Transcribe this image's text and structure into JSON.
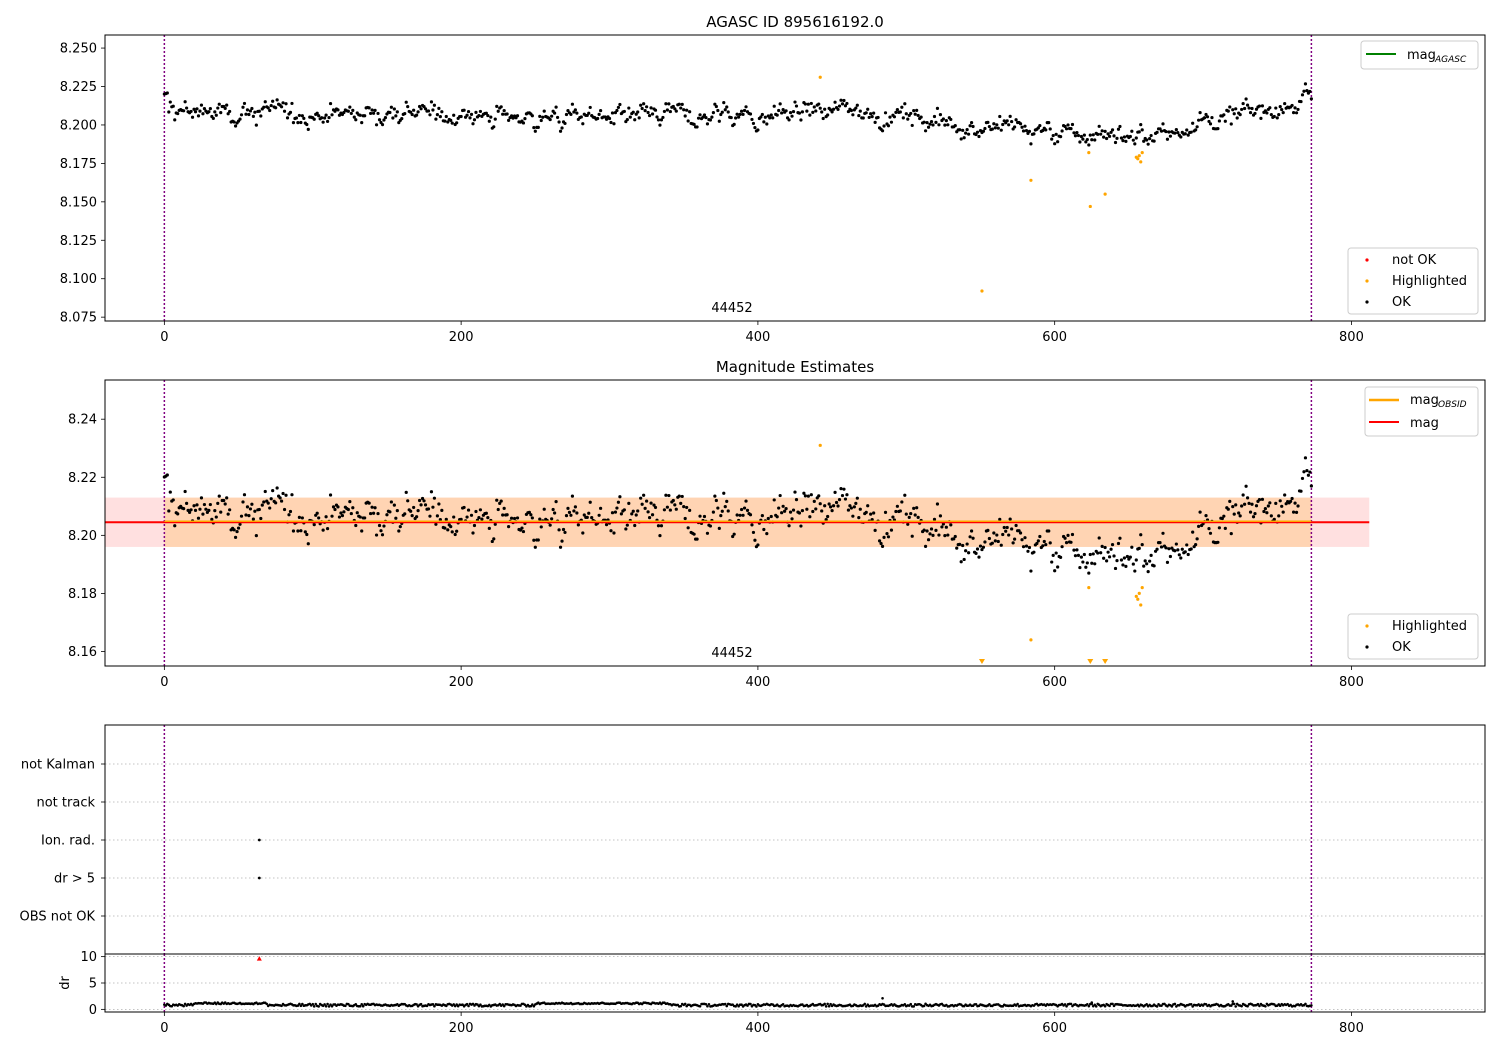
{
  "chart_data": [
    {
      "type": "scatter",
      "title": "AGASC ID 895616192.0",
      "xlabel": "",
      "ylabel": "",
      "xlim": [
        -40,
        890
      ],
      "ylim": [
        8.0725,
        8.2585
      ],
      "x_ticks": [
        "0",
        "200",
        "400",
        "600",
        "800"
      ],
      "y_ticks": [
        "8.075",
        "8.100",
        "8.125",
        "8.150",
        "8.175",
        "8.200",
        "8.225",
        "8.250"
      ],
      "obsid_label": "44452",
      "obsid_boundaries": [
        0,
        773
      ],
      "series": [
        {
          "name": "not OK",
          "color": "#ff0000",
          "points": []
        },
        {
          "name": "Highlighted",
          "color": "#ffa500",
          "points": [
            [
              442,
              8.231
            ],
            [
              551,
              8.092
            ],
            [
              584,
              8.164
            ],
            [
              623,
              8.182
            ],
            [
              624,
              8.147
            ],
            [
              634,
              8.155
            ],
            [
              655,
              8.179
            ],
            [
              656,
              8.178
            ],
            [
              657,
              8.18
            ],
            [
              658,
              8.176
            ],
            [
              659,
              8.182
            ]
          ]
        },
        {
          "name": "OK",
          "color": "#000000",
          "points": []
        }
      ],
      "lines": [
        {
          "name": "mag_AGASC",
          "color": "#008000"
        }
      ],
      "legend_upper": [
        {
          "label": "mag",
          "sub": "AGASC",
          "color": "#008000"
        }
      ],
      "legend_lower": [
        {
          "label": "not OK",
          "color": "#ff0000"
        },
        {
          "label": "Highlighted",
          "color": "#ffa500"
        },
        {
          "label": "OK",
          "color": "#000000"
        }
      ]
    },
    {
      "type": "scatter",
      "title": "Magnitude Estimates",
      "xlabel": "",
      "ylabel": "",
      "xlim": [
        -40,
        890
      ],
      "ylim": [
        8.155,
        8.2535
      ],
      "x_ticks": [
        "0",
        "200",
        "400",
        "600",
        "800"
      ],
      "y_ticks": [
        "8.16",
        "8.18",
        "8.20",
        "8.22",
        "8.24"
      ],
      "obsid_label": "44452",
      "obsid_boundaries": [
        0,
        773
      ],
      "bands": [
        {
          "name": "mag",
          "color": "#ff0000",
          "value": 8.2045,
          "low": 8.196,
          "high": 8.213,
          "x_range": [
            -40,
            812
          ]
        },
        {
          "name": "mag_OBSID",
          "color": "#ffa500",
          "value": 8.2045,
          "low": 8.196,
          "high": 8.213,
          "x_range": [
            0,
            773
          ]
        }
      ],
      "series": [
        {
          "name": "Highlighted",
          "color": "#ffa500",
          "points": [
            [
              442,
              8.231
            ],
            [
              584,
              8.164
            ],
            [
              623,
              8.182
            ],
            [
              655,
              8.179
            ],
            [
              656,
              8.178
            ],
            [
              657,
              8.18
            ],
            [
              658,
              8.176
            ],
            [
              659,
              8.182
            ]
          ],
          "below_range_x": [
            551,
            624,
            634
          ]
        },
        {
          "name": "OK",
          "color": "#000000",
          "points": []
        }
      ],
      "legend_upper": [
        {
          "label": "mag",
          "sub": "OBSID",
          "color": "#ffa500"
        },
        {
          "label": "mag",
          "sub": "",
          "color": "#ff0000"
        }
      ],
      "legend_lower": [
        {
          "label": "Highlighted",
          "color": "#ffa500"
        },
        {
          "label": "OK",
          "color": "#000000"
        }
      ]
    },
    {
      "type": "scatter",
      "title": "",
      "xlabel": "",
      "ylabel": "",
      "xlim": [
        -40,
        890
      ],
      "categories": [
        "not Kalman",
        "not track",
        "Ion. rad.",
        "dr > 5",
        "OBS not OK"
      ],
      "obsid_boundaries": [
        0,
        773
      ],
      "points": [
        {
          "category": "Ion. rad.",
          "x": 64
        },
        {
          "category": "dr > 5",
          "x": 64
        }
      ]
    },
    {
      "type": "scatter",
      "title": "",
      "xlabel": "",
      "ylabel": "dr",
      "xlim": [
        -40,
        890
      ],
      "ylim": [
        -0.5,
        10.5
      ],
      "x_ticks": [
        "0",
        "200",
        "400",
        "600",
        "800"
      ],
      "y_ticks": [
        "0",
        "5",
        "10"
      ],
      "obsid_boundaries": [
        0,
        773
      ],
      "clipped_points": [
        {
          "x": 64,
          "color": "#ff0000"
        }
      ],
      "series": [
        {
          "name": "dr",
          "color": "#000000",
          "points": []
        }
      ]
    }
  ]
}
